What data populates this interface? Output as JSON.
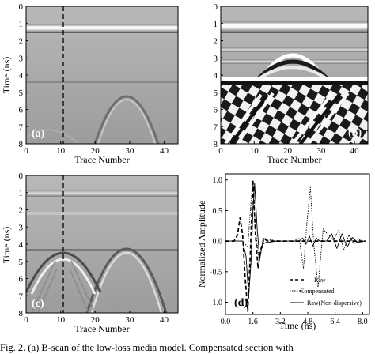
{
  "panels": [
    {
      "label": "(a)",
      "xlabel": "Trace Number",
      "ylabel": "Time (ns)",
      "xticks": [
        "0",
        "10",
        "20",
        "30",
        "40"
      ],
      "yticks": [
        "0",
        "1",
        "2",
        "3",
        "4",
        "5",
        "6",
        "7",
        "8"
      ]
    },
    {
      "label": "(b)",
      "xlabel": "Trace Number",
      "ylabel": "",
      "xticks": [
        "0",
        "10",
        "20",
        "30",
        "40"
      ],
      "yticks": [
        "0",
        "1",
        "2",
        "3",
        "4",
        "5",
        "6",
        "7",
        "8"
      ]
    },
    {
      "label": "(c)",
      "xlabel": "Trace Number",
      "ylabel": "Time (ns)",
      "xticks": [
        "0",
        "10",
        "20",
        "30",
        "40"
      ],
      "yticks": [
        "0",
        "1",
        "2",
        "3",
        "4",
        "5",
        "6",
        "7",
        "8"
      ]
    }
  ],
  "chart_data": {
    "type": "line",
    "label": "(d)",
    "xlabel": "Time (ns)",
    "ylabel": "Normalized Amplitude",
    "xlim": [
      0,
      8.4
    ],
    "ylim": [
      -1.2,
      1.1
    ],
    "xticks": [
      "0.0",
      "1.6",
      "3.2",
      "4.8",
      "6.4",
      "8.0"
    ],
    "yticks": [
      "1.0",
      "0.5",
      "0.0",
      "-0.5",
      "-1.0"
    ],
    "legend_position": "bottom-right",
    "series": [
      {
        "name": "Raw",
        "style": "dashed",
        "x": [
          0,
          0.5,
          0.7,
          0.85,
          1.0,
          1.15,
          1.3,
          1.45,
          1.6,
          1.75,
          1.9,
          2.05,
          2.25,
          2.5,
          3.0,
          8.2
        ],
        "y": [
          0,
          0,
          0.1,
          0.38,
          0.1,
          -0.6,
          -1.15,
          -0.2,
          1.0,
          0.1,
          -0.45,
          -0.15,
          0.05,
          0,
          0,
          0
        ]
      },
      {
        "name": "Compensated",
        "style": "dotted",
        "x": [
          0,
          1.0,
          1.3,
          1.5,
          1.6,
          1.75,
          1.95,
          2.2,
          2.6,
          3.2,
          4.0,
          4.3,
          4.55,
          4.75,
          4.95,
          5.15,
          5.4,
          5.7,
          6.0,
          6.3,
          6.6,
          6.9,
          7.2,
          7.5,
          7.8,
          8.2
        ],
        "y": [
          0,
          0,
          -0.1,
          0.7,
          0.97,
          0.2,
          -0.3,
          -0.05,
          0.02,
          0,
          0,
          0.05,
          -0.45,
          0.3,
          0.88,
          -0.05,
          -0.75,
          0.2,
          0.1,
          0.02,
          0.18,
          -0.15,
          0.1,
          -0.05,
          0.02,
          0
        ]
      },
      {
        "name": "Raw(Non-dispersive)",
        "style": "solid",
        "x": [
          0,
          1.0,
          1.2,
          1.35,
          1.5,
          1.6,
          1.7,
          1.85,
          2.0,
          2.2,
          2.5,
          3.0,
          4.3,
          4.5,
          4.7,
          4.9,
          5.1,
          5.3,
          5.5,
          5.9,
          6.2,
          6.5,
          6.8,
          7.1,
          7.4,
          7.7,
          8.2
        ],
        "y": [
          0,
          0,
          -0.25,
          -0.9,
          -0.3,
          0.5,
          0.95,
          0.2,
          -0.3,
          0.05,
          -0.02,
          0,
          0,
          0.05,
          -0.05,
          0.08,
          -0.08,
          0.05,
          0,
          0,
          0.12,
          -0.12,
          0.12,
          -0.1,
          0.06,
          -0.02,
          0
        ]
      }
    ]
  },
  "caption": "Fig. 2.   (a) B-scan of the low-loss media model. Compensated section with"
}
